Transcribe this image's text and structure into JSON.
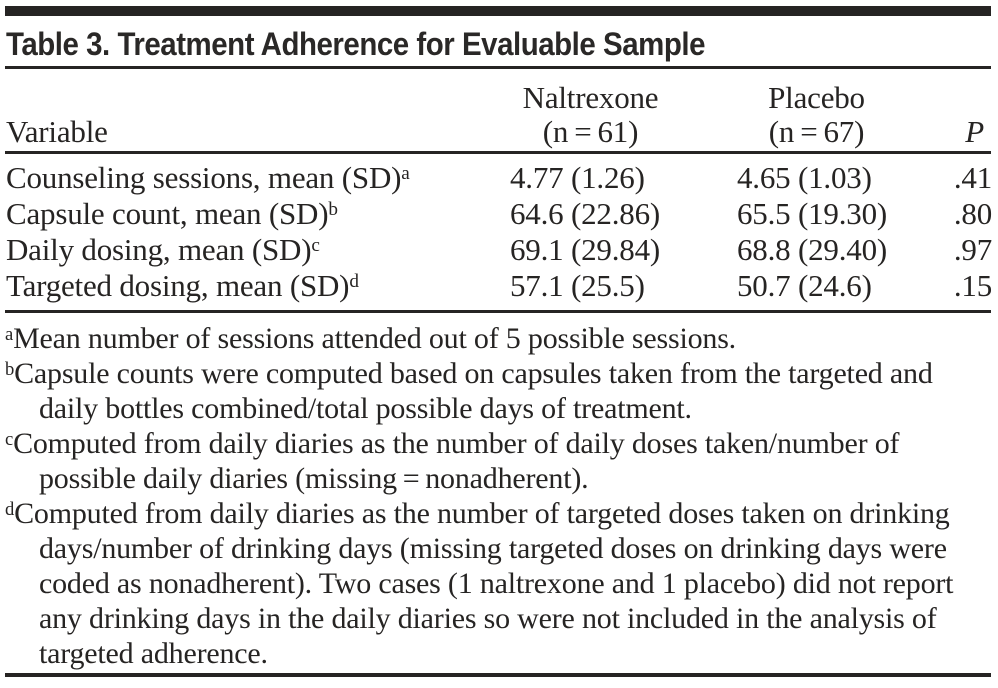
{
  "title": "Table 3. Treatment Adherence for Evaluable Sample",
  "table": {
    "columns": {
      "variable": "Variable",
      "group1_line1": "Naltrexone",
      "group1_line2": "(n = 61)",
      "group2_line1": "Placebo",
      "group2_line2": "(n = 67)",
      "p": "P"
    },
    "rows": [
      {
        "variable": "Counseling sessions, mean (SD)",
        "sup": "a",
        "naltrexone": "4.77 (1.26)",
        "placebo": "4.65 (1.03)",
        "p": ".41"
      },
      {
        "variable": "Capsule count, mean (SD)",
        "sup": "b",
        "naltrexone": "64.6 (22.86)",
        "placebo": "65.5 (19.30)",
        "p": ".80"
      },
      {
        "variable": "Daily dosing, mean (SD)",
        "sup": "c",
        "naltrexone": "69.1 (29.84)",
        "placebo": "68.8 (29.40)",
        "p": ".97"
      },
      {
        "variable": "Targeted dosing, mean (SD)",
        "sup": "d",
        "naltrexone": "57.1 (25.5)",
        "placebo": "50.7 (24.6)",
        "p": ".15"
      }
    ]
  },
  "footnotes": [
    {
      "sup": "a",
      "text": "Mean number of sessions attended out of 5 possible sessions."
    },
    {
      "sup": "b",
      "text": "Capsule counts were computed based on capsules taken from the targeted and daily bottles combined/total possible days of treatment."
    },
    {
      "sup": "c",
      "text": "Computed from daily diaries as the number of daily doses taken/number of possible daily diaries (missing = nonadherent)."
    },
    {
      "sup": "d",
      "text": "Computed from daily diaries as the number of targeted doses taken on drinking days/number of drinking days (missing targeted doses on drinking days were coded as nonadherent). Two cases (1 naltrexone and 1 placebo) did not report any drinking days in the daily diaries so were not included in the analysis of targeted adherence."
    }
  ],
  "colors": {
    "text": "#262423",
    "rule": "#262423",
    "background": "#ffffff"
  }
}
